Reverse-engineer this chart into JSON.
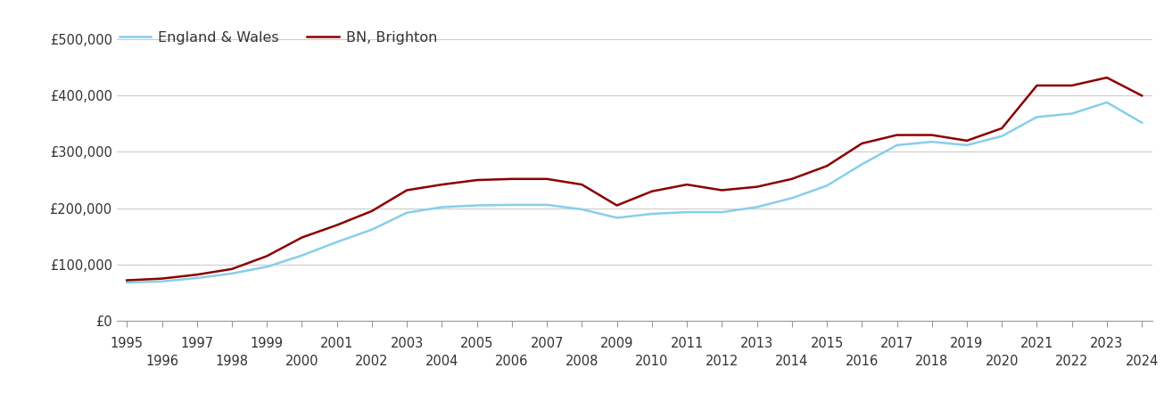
{
  "brighton_label": "BN, Brighton",
  "ew_label": "England & Wales",
  "brighton_color": "#8B0000",
  "ew_color": "#87CEEB",
  "line_width": 1.8,
  "background_color": "#ffffff",
  "grid_color": "#cccccc",
  "years": [
    1995,
    1996,
    1997,
    1998,
    1999,
    2000,
    2001,
    2002,
    2003,
    2004,
    2005,
    2006,
    2007,
    2008,
    2009,
    2010,
    2011,
    2012,
    2013,
    2014,
    2015,
    2016,
    2017,
    2018,
    2019,
    2020,
    2021,
    2022,
    2023,
    2024
  ],
  "brighton": [
    72000,
    75000,
    82000,
    92000,
    115000,
    148000,
    170000,
    195000,
    232000,
    242000,
    250000,
    252000,
    252000,
    242000,
    205000,
    230000,
    242000,
    232000,
    238000,
    252000,
    275000,
    315000,
    330000,
    330000,
    320000,
    342000,
    418000,
    418000,
    432000,
    400000
  ],
  "england_wales": [
    68000,
    70000,
    76000,
    84000,
    96000,
    116000,
    140000,
    162000,
    192000,
    202000,
    205000,
    206000,
    206000,
    198000,
    183000,
    190000,
    193000,
    193000,
    202000,
    218000,
    240000,
    278000,
    312000,
    318000,
    312000,
    328000,
    362000,
    368000,
    388000,
    352000
  ],
  "ylim": [
    0,
    520000
  ],
  "yticks": [
    0,
    100000,
    200000,
    300000,
    400000,
    500000
  ],
  "ytick_labels": [
    "£0",
    "£100,000",
    "£200,000",
    "£300,000",
    "£400,000",
    "£500,000"
  ],
  "tick_fontsize": 10.5,
  "legend_fontsize": 11.5,
  "text_color": "#333333"
}
